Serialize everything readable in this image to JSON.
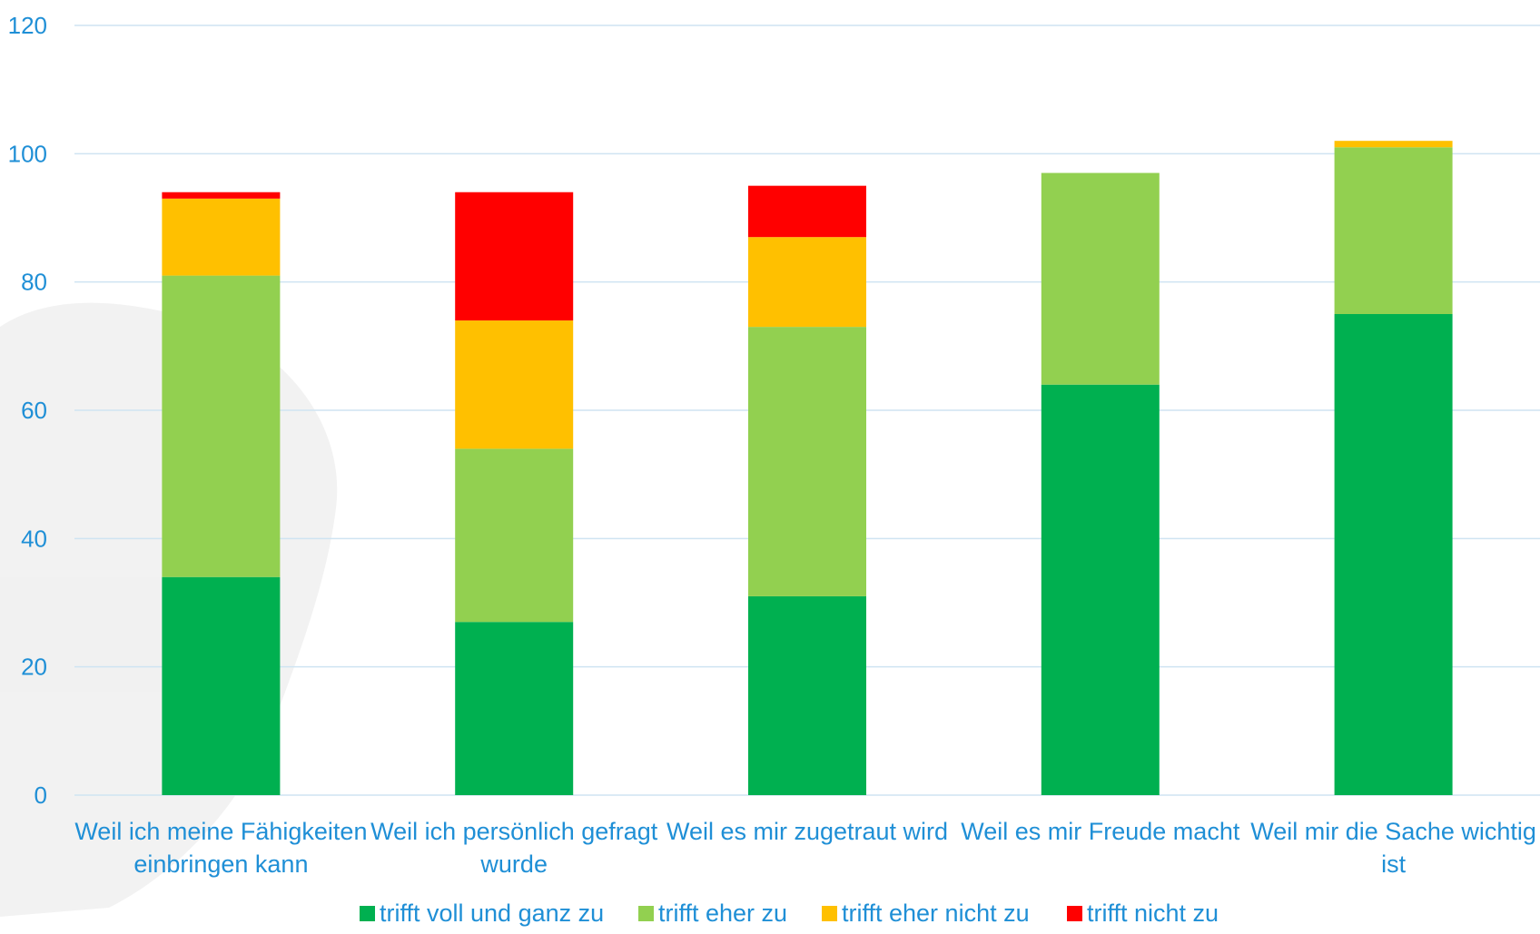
{
  "chart_data": {
    "type": "bar",
    "stacked": true,
    "categories": [
      [
        "Weil ich meine Fähigkeiten",
        "einbringen kann"
      ],
      [
        "Weil ich persönlich gefragt",
        "wurde"
      ],
      [
        "Weil es mir zugetraut wird"
      ],
      [
        "Weil es mir Freude macht"
      ],
      [
        "Weil mir die Sache wichtig",
        "ist"
      ]
    ],
    "series": [
      {
        "name": "trifft voll und ganz zu",
        "color": "#00b050",
        "values": [
          34,
          27,
          31,
          64,
          75
        ]
      },
      {
        "name": "trifft eher zu",
        "color": "#92d050",
        "values": [
          47,
          27,
          42,
          33,
          26
        ]
      },
      {
        "name": "trifft eher nicht zu",
        "color": "#ffc000",
        "values": [
          12,
          20,
          14,
          0,
          1
        ]
      },
      {
        "name": "trifft nicht zu",
        "color": "#ff0000",
        "values": [
          1,
          20,
          8,
          0,
          0
        ]
      }
    ],
    "ylim": [
      0,
      120
    ],
    "yticks": [
      0,
      20,
      40,
      60,
      80,
      100,
      120
    ],
    "grid": true,
    "legend": "bottom"
  }
}
